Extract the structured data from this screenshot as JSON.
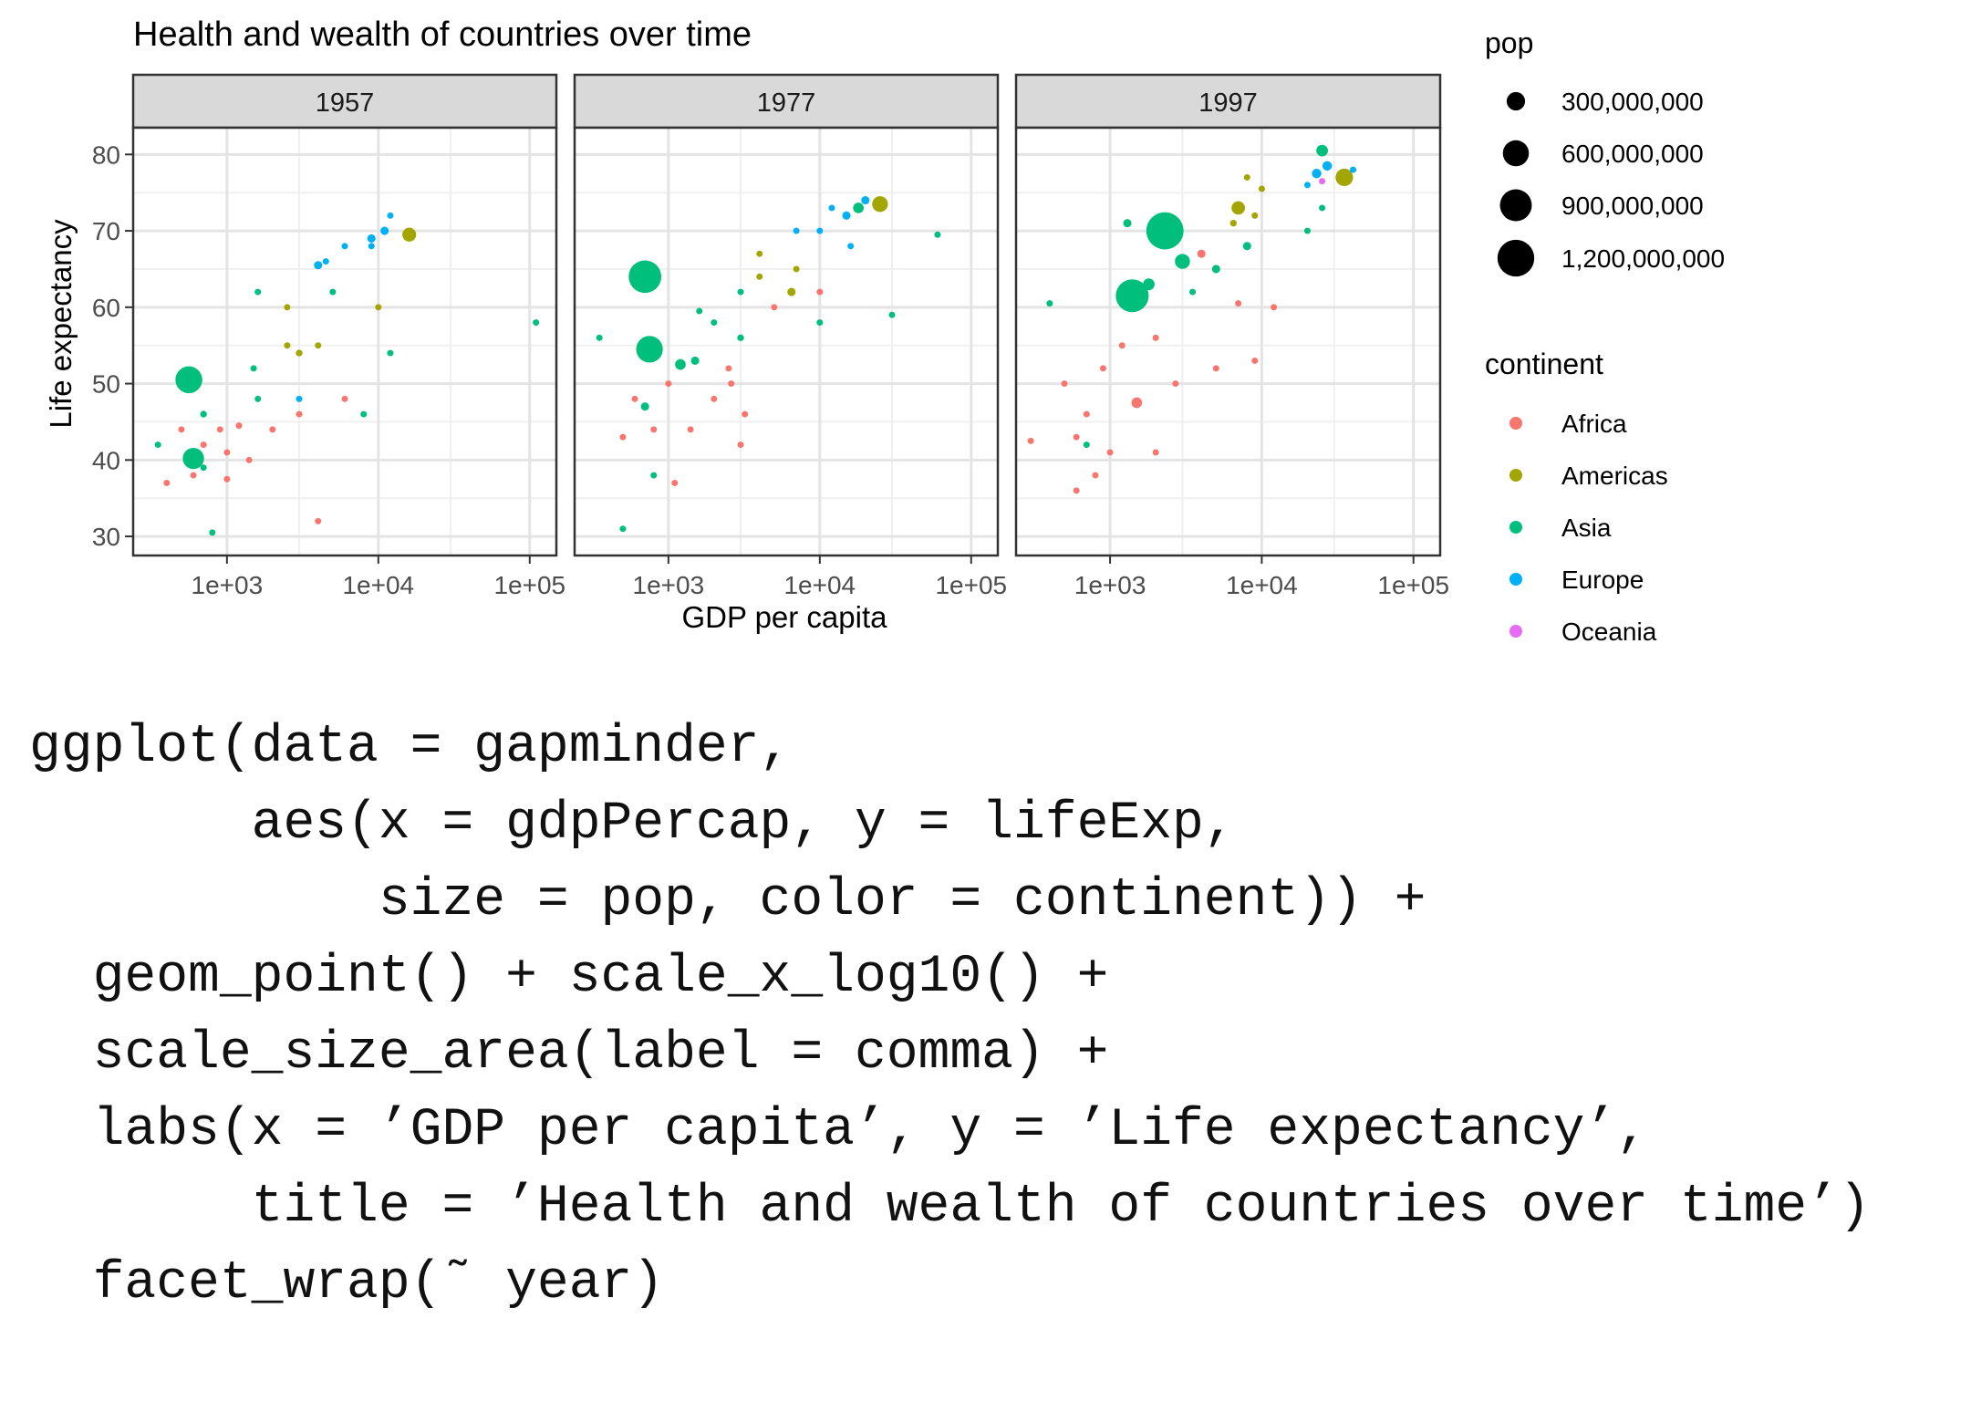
{
  "chart_data": {
    "type": "scatter",
    "title": "Health and wealth of countries over time",
    "xlabel": "GDP per capita",
    "ylabel": "Life expectancy",
    "x_scale": "log10",
    "xlim": [
      240,
      150000
    ],
    "ylim": [
      27.5,
      83.5
    ],
    "x_ticks": [
      1000,
      10000,
      100000
    ],
    "x_tick_labels": [
      "1e+03",
      "1e+04",
      "1e+05"
    ],
    "y_ticks": [
      30,
      40,
      50,
      60,
      70,
      80
    ],
    "y_tick_labels": [
      "30",
      "40",
      "50",
      "60",
      "70",
      "80"
    ],
    "grid": true,
    "legend_position": "right",
    "size_legend": {
      "title": "pop",
      "values": [
        300000000,
        600000000,
        900000000,
        1200000000
      ],
      "labels": [
        "300,000,000",
        "600,000,000",
        "900,000,000",
        "1,200,000,000"
      ]
    },
    "color_legend": {
      "title": "continent",
      "entries": [
        {
          "label": "Africa",
          "color": "#F8766D"
        },
        {
          "label": "Americas",
          "color": "#A3A500"
        },
        {
          "label": "Asia",
          "color": "#00BF7D"
        },
        {
          "label": "Europe",
          "color": "#00B0F6"
        },
        {
          "label": "Oceania",
          "color": "#E76BF3"
        }
      ]
    },
    "facets": [
      {
        "label": "1957",
        "points": [
          [
            560,
            50.5,
            640000000,
            "Asia"
          ],
          [
            600,
            40.2,
            400000000,
            "Asia"
          ],
          [
            16000,
            69.5,
            170000000,
            "Americas"
          ],
          [
            9000,
            69.0,
            60000000,
            "Europe"
          ],
          [
            4000,
            65.5,
            60000000,
            "Europe"
          ],
          [
            11000,
            70.0,
            60000000,
            "Europe"
          ],
          [
            3000,
            54.0,
            40000000,
            "Americas"
          ],
          [
            1500,
            52.0,
            30000000,
            "Asia"
          ],
          [
            3000,
            48.0,
            20000000,
            "Europe"
          ],
          [
            700,
            46.0,
            40000000,
            "Asia"
          ],
          [
            700,
            39.0,
            30000000,
            "Asia"
          ],
          [
            1600,
            62.0,
            20000000,
            "Asia"
          ],
          [
            6000,
            68.0,
            20000000,
            "Europe"
          ],
          [
            5000,
            62.0,
            20000000,
            "Asia"
          ],
          [
            1000,
            37.5,
            10000000,
            "Africa"
          ],
          [
            1400,
            40.0,
            10000000,
            "Africa"
          ],
          [
            2000,
            44.0,
            10000000,
            "Africa"
          ],
          [
            3000,
            46.0,
            8000000,
            "Africa"
          ],
          [
            6000,
            48.0,
            8000000,
            "Africa"
          ],
          [
            4000,
            55.0,
            8000000,
            "Americas"
          ],
          [
            9000,
            68.0,
            8000000,
            "Europe"
          ],
          [
            12000,
            72.0,
            8000000,
            "Europe"
          ],
          [
            4500,
            66.0,
            8000000,
            "Europe"
          ],
          [
            2500,
            55.0,
            6000000,
            "Americas"
          ],
          [
            1600,
            48.0,
            6000000,
            "Asia"
          ],
          [
            1000,
            41.0,
            6000000,
            "Africa"
          ],
          [
            900,
            44.0,
            6000000,
            "Africa"
          ],
          [
            1200,
            44.5,
            5000000,
            "Africa"
          ],
          [
            700,
            42.0,
            5000000,
            "Africa"
          ],
          [
            500,
            44.0,
            4000000,
            "Africa"
          ],
          [
            600,
            38.0,
            5000000,
            "Africa"
          ],
          [
            400,
            37.0,
            4000000,
            "Africa"
          ],
          [
            350,
            42.0,
            3000000,
            "Asia"
          ],
          [
            8000,
            46.0,
            3000000,
            "Asia"
          ],
          [
            10000,
            60.0,
            2000000,
            "Americas"
          ],
          [
            12000,
            54.0,
            1000000,
            "Asia"
          ],
          [
            110000,
            58.0,
            200000,
            "Asia"
          ],
          [
            4000,
            32.0,
            2000000,
            "Africa"
          ],
          [
            800,
            30.5,
            2000000,
            "Asia"
          ],
          [
            2500,
            60.0,
            2000000,
            "Americas"
          ]
        ]
      },
      {
        "label": "1977",
        "points": [
          [
            700,
            64.0,
            940000000,
            "Asia"
          ],
          [
            750,
            54.5,
            630000000,
            "Asia"
          ],
          [
            25000,
            73.5,
            220000000,
            "Americas"
          ],
          [
            18000,
            73.0,
            100000000,
            "Asia"
          ],
          [
            15000,
            72.0,
            60000000,
            "Europe"
          ],
          [
            20000,
            74.0,
            60000000,
            "Europe"
          ],
          [
            1200,
            52.5,
            100000000,
            "Asia"
          ],
          [
            1500,
            53.0,
            60000000,
            "Asia"
          ],
          [
            6500,
            62.0,
            60000000,
            "Americas"
          ],
          [
            3000,
            56.0,
            40000000,
            "Asia"
          ],
          [
            1600,
            59.5,
            30000000,
            "Asia"
          ],
          [
            700,
            47.0,
            60000000,
            "Asia"
          ],
          [
            7000,
            65.0,
            30000000,
            "Americas"
          ],
          [
            4000,
            64.0,
            20000000,
            "Americas"
          ],
          [
            3000,
            62.0,
            20000000,
            "Asia"
          ],
          [
            2000,
            48.0,
            20000000,
            "Africa"
          ],
          [
            1000,
            50.0,
            10000000,
            "Africa"
          ],
          [
            1400,
            44.0,
            10000000,
            "Africa"
          ],
          [
            800,
            44.0,
            10000000,
            "Africa"
          ],
          [
            2500,
            52.0,
            8000000,
            "Africa"
          ],
          [
            3200,
            46.0,
            8000000,
            "Africa"
          ],
          [
            5000,
            60.0,
            8000000,
            "Africa"
          ],
          [
            10000,
            62.0,
            8000000,
            "Africa"
          ],
          [
            4000,
            67.0,
            20000000,
            "Americas"
          ],
          [
            7000,
            70.0,
            10000000,
            "Europe"
          ],
          [
            10000,
            70.0,
            10000000,
            "Europe"
          ],
          [
            12000,
            73.0,
            10000000,
            "Europe"
          ],
          [
            2000,
            58.0,
            8000000,
            "Asia"
          ],
          [
            10000,
            58.0,
            8000000,
            "Asia"
          ],
          [
            30000,
            59.0,
            5000000,
            "Asia"
          ],
          [
            60000,
            69.5,
            2000000,
            "Asia"
          ],
          [
            350,
            56.0,
            8000000,
            "Asia"
          ],
          [
            600,
            48.0,
            6000000,
            "Africa"
          ],
          [
            500,
            43.0,
            6000000,
            "Africa"
          ],
          [
            800,
            38.0,
            6000000,
            "Asia"
          ],
          [
            1100,
            37.0,
            4000000,
            "Africa"
          ],
          [
            3000,
            42.0,
            6000000,
            "Africa"
          ],
          [
            500,
            31.0,
            3000000,
            "Asia"
          ],
          [
            16000,
            68.0,
            5000000,
            "Europe"
          ],
          [
            2600,
            50.0,
            5000000,
            "Africa"
          ]
        ]
      },
      {
        "label": "1997",
        "points": [
          [
            2300,
            70.0,
            1230000000,
            "Asia"
          ],
          [
            1400,
            61.5,
            960000000,
            "Asia"
          ],
          [
            35000,
            77.0,
            270000000,
            "Americas"
          ],
          [
            25000,
            80.5,
            120000000,
            "Asia"
          ],
          [
            23000,
            77.5,
            80000000,
            "Europe"
          ],
          [
            27000,
            78.5,
            80000000,
            "Europe"
          ],
          [
            3000,
            66.0,
            200000000,
            "Asia"
          ],
          [
            1800,
            63.0,
            120000000,
            "Asia"
          ],
          [
            1500,
            47.5,
            100000000,
            "Africa"
          ],
          [
            7000,
            73.0,
            160000000,
            "Americas"
          ],
          [
            8000,
            68.0,
            60000000,
            "Asia"
          ],
          [
            5000,
            65.0,
            60000000,
            "Asia"
          ],
          [
            4000,
            67.0,
            60000000,
            "Africa"
          ],
          [
            6500,
            71.0,
            40000000,
            "Americas"
          ],
          [
            9000,
            72.0,
            20000000,
            "Americas"
          ],
          [
            1300,
            71.0,
            60000000,
            "Asia"
          ],
          [
            400,
            60.5,
            30000000,
            "Asia"
          ],
          [
            300,
            42.5,
            30000000,
            "Africa"
          ],
          [
            500,
            50.0,
            20000000,
            "Africa"
          ],
          [
            900,
            52.0,
            20000000,
            "Africa"
          ],
          [
            1200,
            55.0,
            15000000,
            "Africa"
          ],
          [
            700,
            46.0,
            15000000,
            "Africa"
          ],
          [
            600,
            43.0,
            10000000,
            "Africa"
          ],
          [
            2000,
            56.0,
            8000000,
            "Africa"
          ],
          [
            2700,
            50.0,
            8000000,
            "Africa"
          ],
          [
            7000,
            60.5,
            20000000,
            "Africa"
          ],
          [
            12000,
            60.0,
            5000000,
            "Africa"
          ],
          [
            9000,
            53.0,
            5000000,
            "Africa"
          ],
          [
            2000,
            41.0,
            10000000,
            "Africa"
          ],
          [
            800,
            38.0,
            5000000,
            "Africa"
          ],
          [
            600,
            36.0,
            5000000,
            "Africa"
          ],
          [
            1000,
            41.0,
            5000000,
            "Africa"
          ],
          [
            5000,
            52.0,
            5000000,
            "Africa"
          ],
          [
            3500,
            62.0,
            5000000,
            "Asia"
          ],
          [
            700,
            42.0,
            5000000,
            "Asia"
          ],
          [
            20000,
            70.0,
            5000000,
            "Asia"
          ],
          [
            25000,
            73.0,
            5000000,
            "Asia"
          ],
          [
            20000,
            76.0,
            5000000,
            "Europe"
          ],
          [
            25000,
            76.5,
            5000000,
            "Oceania"
          ],
          [
            40000,
            78.0,
            5000000,
            "Europe"
          ],
          [
            10000,
            75.5,
            5000000,
            "Americas"
          ],
          [
            8000,
            77.0,
            5000000,
            "Americas"
          ]
        ]
      }
    ]
  },
  "code": {
    "lines": [
      "ggplot(data = gapminder,",
      "       aes(x = gdpPercap, y = lifeExp,",
      "           size = pop, color = continent)) +",
      "  geom_point() + scale_x_log10() +",
      "  scale_size_area(label = comma) +",
      "  labs(x = ’GDP per capita’, y = ’Life expectancy’,",
      "       title = ’Health and wealth of countries over time’)",
      "  facet_wrap(˜ year)"
    ]
  }
}
